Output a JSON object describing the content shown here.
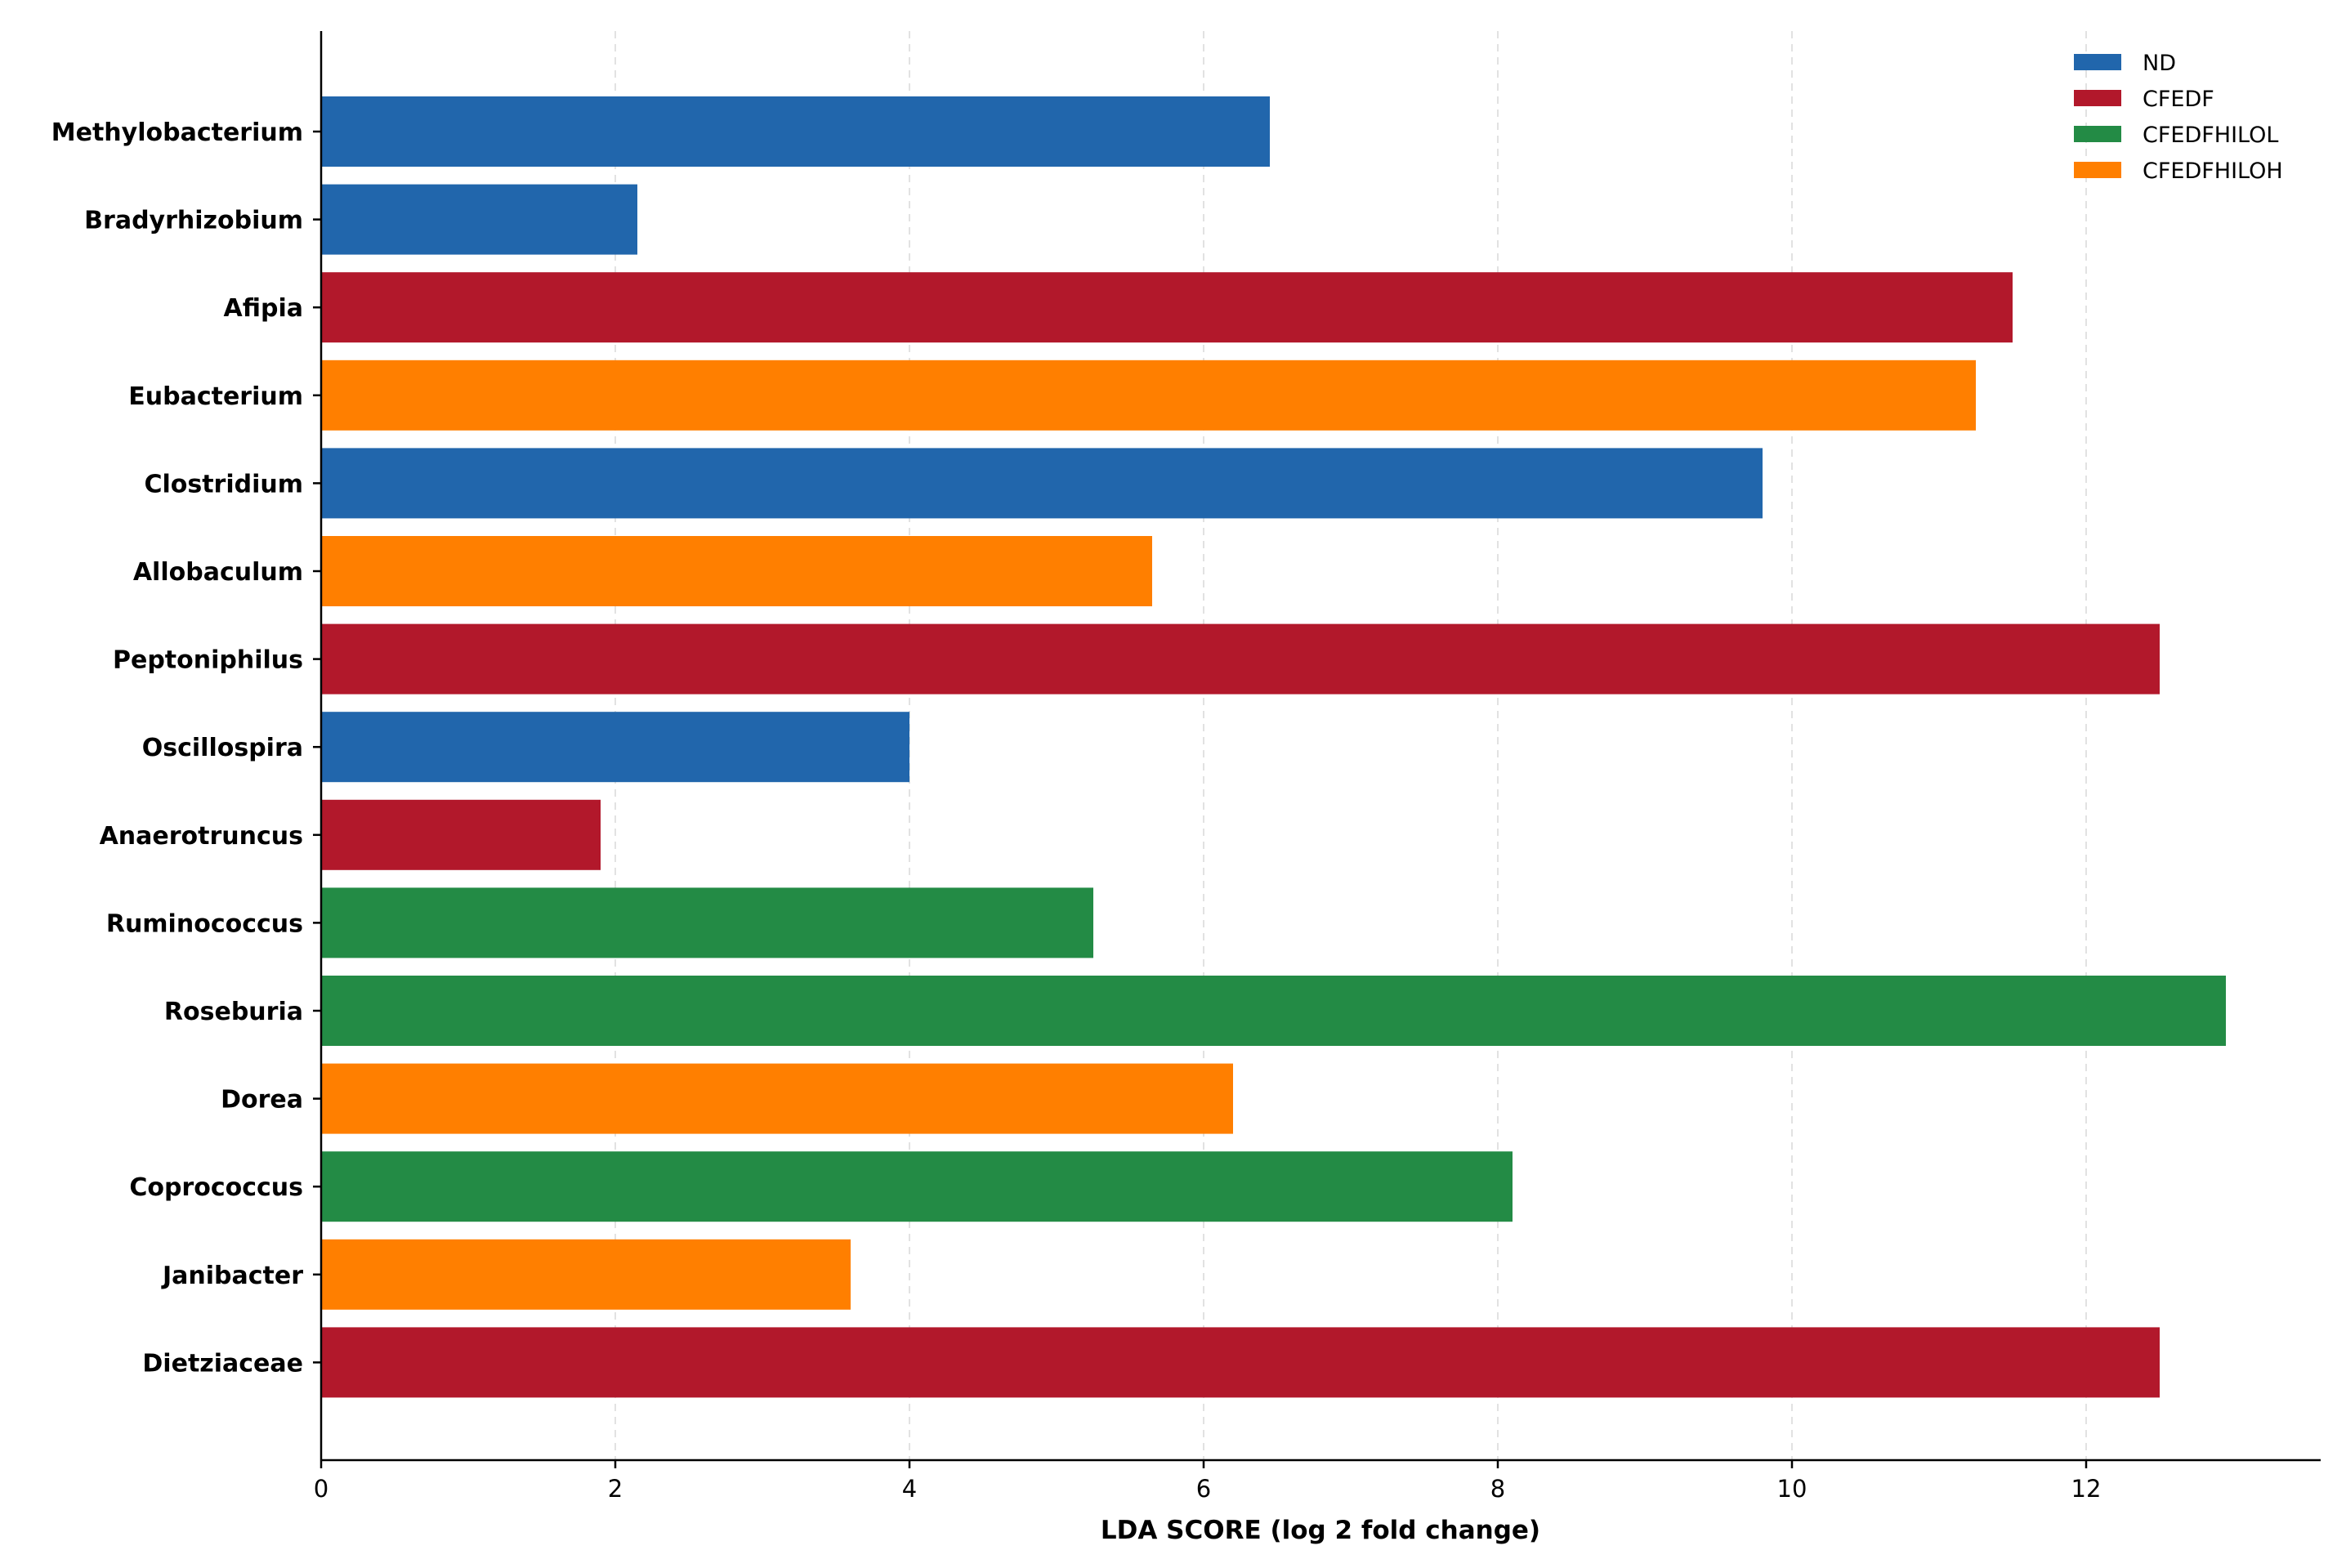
{
  "chart_data": {
    "type": "bar",
    "orientation": "horizontal",
    "title": "",
    "xlabel": "LDA SCORE (log 2 fold change)",
    "ylabel": "",
    "xlim": [
      0,
      13.6
    ],
    "x_ticks": [
      "0",
      "2",
      "4",
      "6",
      "8",
      "10",
      "12"
    ],
    "grid": "vertical dashed",
    "legend_position": "top-right",
    "legend": [
      {
        "name": "ND",
        "color": "#2166ac"
      },
      {
        "name": "CFEDF",
        "color": "#b2182b"
      },
      {
        "name": "CFEDFHILOL",
        "color": "#238b45"
      },
      {
        "name": "CFEDFHILOH",
        "color": "#ff7f00"
      }
    ],
    "bars": [
      {
        "category": "Methylobacterium",
        "value": 6.45,
        "group": "ND"
      },
      {
        "category": "Bradyrhizobium",
        "value": 2.15,
        "group": "ND"
      },
      {
        "category": "Afipia",
        "value": 11.5,
        "group": "CFEDF"
      },
      {
        "category": "Eubacterium",
        "value": 11.25,
        "group": "CFEDFHILOH"
      },
      {
        "category": "Clostridium",
        "value": 9.8,
        "group": "ND"
      },
      {
        "category": "Allobaculum",
        "value": 5.65,
        "group": "CFEDFHILOH"
      },
      {
        "category": "Peptoniphilus",
        "value": 12.5,
        "group": "CFEDF"
      },
      {
        "category": "Oscillospira",
        "value": 4.0,
        "group": "ND"
      },
      {
        "category": "Anaerotruncus",
        "value": 1.9,
        "group": "CFEDF"
      },
      {
        "category": "Ruminococcus",
        "value": 5.25,
        "group": "CFEDFHILOL"
      },
      {
        "category": "Roseburia",
        "value": 12.95,
        "group": "CFEDFHILOL"
      },
      {
        "category": "Dorea",
        "value": 6.2,
        "group": "CFEDFHILOH"
      },
      {
        "category": "Coprococcus",
        "value": 8.1,
        "group": "CFEDFHILOL"
      },
      {
        "category": "Janibacter",
        "value": 3.6,
        "group": "CFEDFHILOH"
      },
      {
        "category": "Dietziaceae",
        "value": 12.5,
        "group": "CFEDF"
      }
    ]
  }
}
